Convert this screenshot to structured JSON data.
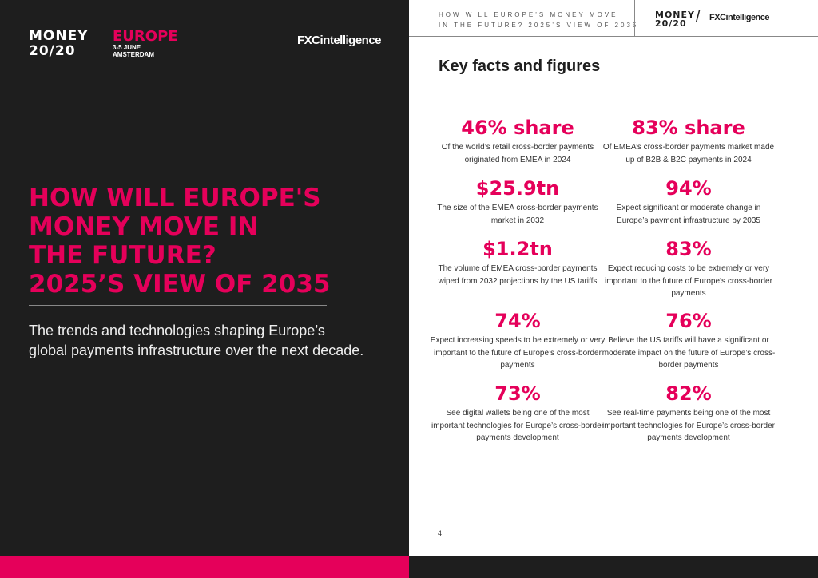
{
  "cover": {
    "logo_money": "MONEY",
    "logo_2020": "20/20",
    "event": "EUROPE",
    "dates": "3-5 JUNE",
    "city": "AMSTERDAM",
    "partner_logo": "FXCintelligence",
    "title_lines": [
      "HOW WILL EUROPE'S",
      "MONEY MOVE IN",
      "THE FUTURE?",
      "2025’S VIEW OF 2035"
    ],
    "subtitle": "The trends and technologies shaping Europe’s global payments infrastructure over the next decade."
  },
  "header": {
    "line1": "HOW WILL EUROPE’S MONEY MOVE",
    "line2": "IN THE FUTURE? 2025’S VIEW OF 2035",
    "logo_money": "MONEY",
    "logo_2020": "20/20",
    "slash": "/",
    "partner_logo": "FXCintelligence"
  },
  "section_title": "Key facts and figures",
  "stats": [
    {
      "value": "46% share",
      "desc": "Of the world’s retail cross-border payments originated from EMEA in 2024"
    },
    {
      "value": "83% share",
      "desc": "Of EMEA’s cross-border payments market made up of B2B & B2C payments in 2024"
    },
    {
      "value": "$25.9tn",
      "desc": "The size of the EMEA cross-border payments market in 2032"
    },
    {
      "value": "94%",
      "desc": "Expect significant or moderate change in Europe’s payment infrastructure by 2035"
    },
    {
      "value": "$1.2tn",
      "desc": "The volume of EMEA cross-border payments wiped from 2032 projections by the US tariffs"
    },
    {
      "value": "83%",
      "desc": "Expect reducing costs to be extremely or very important to the future of Europe’s cross-border payments"
    },
    {
      "value": "74%",
      "desc": "Expect increasing speeds to be extremely or very important to the future of Europe’s cross-border payments"
    },
    {
      "value": "76%",
      "desc": "Believe the US tariffs will have a significant or moderate impact on the future of Europe’s cross-border payments"
    },
    {
      "value": "73%",
      "desc": "See digital wallets being one of the most important technologies for Europe’s cross-border payments development"
    },
    {
      "value": "82%",
      "desc": "See real-time payments being one of the most important technologies for Europe’s cross-border payments development"
    }
  ],
  "page_number": "4",
  "colors": {
    "accent": "#e5005a",
    "dark": "#1e1e1e"
  }
}
